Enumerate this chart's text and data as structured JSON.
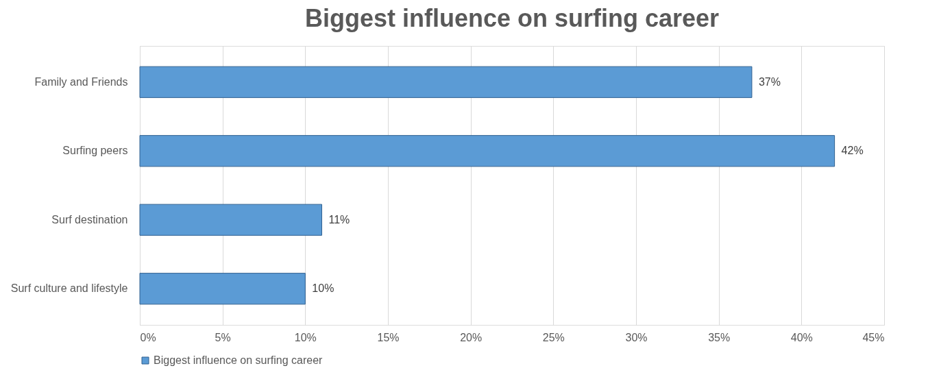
{
  "chart_data": {
    "type": "bar",
    "orientation": "horizontal",
    "title": "Biggest influence on surfing career",
    "categories": [
      "Family and Friends",
      "Surfing peers",
      "Surf destination",
      "Surf culture and lifestyle"
    ],
    "series": [
      {
        "name": "Biggest influence on surfing career",
        "color": "#5b9bd5",
        "values": [
          37,
          42,
          11,
          10
        ],
        "value_labels": [
          "37%",
          "42%",
          "11%",
          "10%"
        ]
      }
    ],
    "xlim": [
      0,
      45
    ],
    "xticks": [
      {
        "value": 0,
        "label": "0%"
      },
      {
        "value": 5,
        "label": "5%"
      },
      {
        "value": 10,
        "label": "10%"
      },
      {
        "value": 15,
        "label": "15%"
      },
      {
        "value": 20,
        "label": "20%"
      },
      {
        "value": 25,
        "label": "25%"
      },
      {
        "value": 30,
        "label": "30%"
      },
      {
        "value": 35,
        "label": "35%"
      },
      {
        "value": 40,
        "label": "40%"
      },
      {
        "value": 45,
        "label": "45%"
      }
    ],
    "grid": "x",
    "legend": "bottom"
  }
}
